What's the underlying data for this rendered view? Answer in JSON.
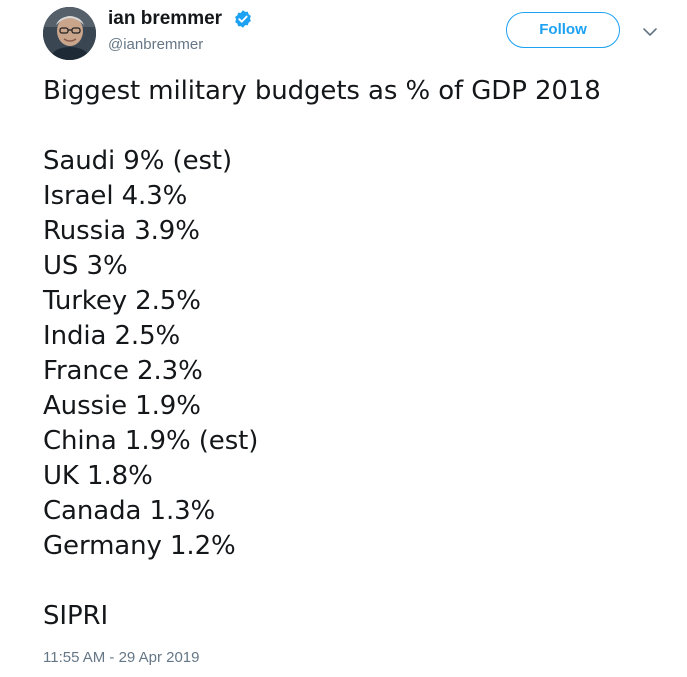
{
  "author": {
    "name": "ian bremmer",
    "handle": "@ianbremmer",
    "verified_icon": "verified-badge-icon",
    "avatar_icon": "profile-photo"
  },
  "actions": {
    "follow_label": "Follow",
    "more_icon": "chevron-down-icon"
  },
  "tweet": {
    "title": "Biggest military budgets as % of GDP 2018",
    "lines": [
      "Saudi 9% (est)",
      "Israel 4.3%",
      "Russia 3.9%",
      "US 3%",
      "Turkey 2.5%",
      "India 2.5%",
      "France 2.3%",
      "Aussie 1.9%",
      "China 1.9% (est)",
      "UK 1.8%",
      "Canada 1.3%",
      "Germany 1.2%"
    ],
    "source": "SIPRI"
  },
  "timestamp": "11:55 AM - 29 Apr 2019",
  "colors": {
    "accent": "#1da1f2",
    "text": "#14171a",
    "secondary": "#657786"
  }
}
